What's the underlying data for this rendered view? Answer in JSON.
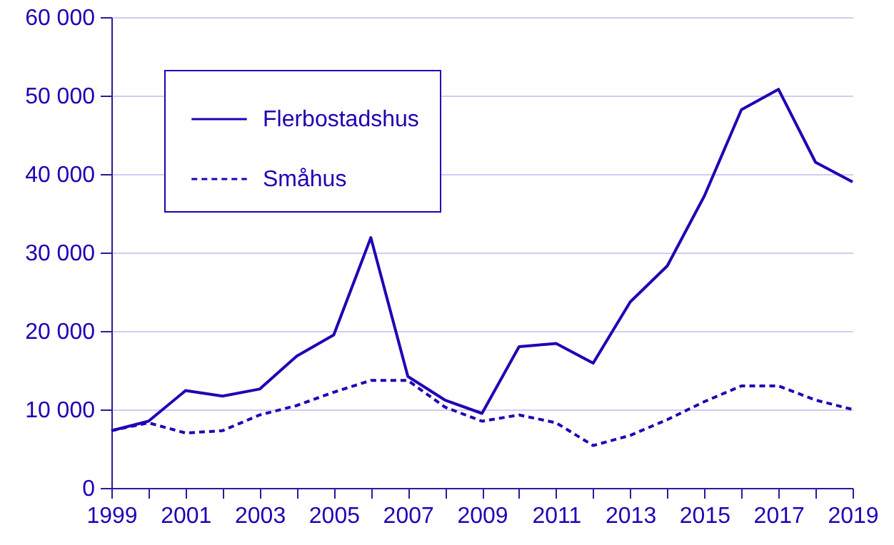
{
  "chart_data": {
    "type": "line",
    "x": [
      1999,
      2000,
      2001,
      2002,
      2003,
      2004,
      2005,
      2006,
      2007,
      2008,
      2009,
      2010,
      2011,
      2012,
      2013,
      2014,
      2015,
      2016,
      2017,
      2018,
      2019
    ],
    "series": [
      {
        "name": "Flerbostadshus",
        "color": "#1f00b4",
        "line_style": "solid",
        "values": [
          7300,
          8500,
          12400,
          11700,
          12600,
          16800,
          19500,
          31900,
          14200,
          11200,
          9500,
          18000,
          18400,
          15900,
          23700,
          28300,
          37200,
          48200,
          50800,
          41500,
          39000
        ]
      },
      {
        "name": "Småhus",
        "color": "#1f00b4",
        "line_style": "dashed",
        "values": [
          7300,
          8300,
          7000,
          7300,
          9300,
          10500,
          12200,
          13700,
          13700,
          10300,
          8500,
          9300,
          8300,
          5400,
          6700,
          8700,
          11000,
          13000,
          13000,
          11200,
          10000
        ]
      }
    ],
    "xlim": [
      1999,
      2019
    ],
    "xticks": [
      1999,
      {
        "value": 2000,
        "label": null
      },
      2001,
      {
        "value": 2002,
        "label": null
      },
      2003,
      {
        "value": 2004,
        "label": null
      },
      2005,
      {
        "value": 2006,
        "label": null
      },
      2007,
      {
        "value": 2008,
        "label": null
      },
      2009,
      {
        "value": 2010,
        "label": null
      },
      2011,
      {
        "value": 2012,
        "label": null
      },
      2013,
      {
        "value": 2014,
        "label": null
      },
      2015,
      {
        "value": 2016,
        "label": null
      },
      2017,
      {
        "value": 2018,
        "label": null
      },
      2019
    ],
    "ylim": [
      0,
      60000
    ],
    "yticks": [
      0,
      {
        "value": 10000,
        "label": "10 000"
      },
      {
        "value": 20000,
        "label": "20 000"
      },
      {
        "value": 30000,
        "label": "30 000"
      },
      {
        "value": 40000,
        "label": "40 000"
      },
      {
        "value": 50000,
        "label": "50 000"
      },
      {
        "value": 60000,
        "label": "60 000"
      }
    ],
    "grid": "y",
    "legend": "top left",
    "marker": "none"
  }
}
